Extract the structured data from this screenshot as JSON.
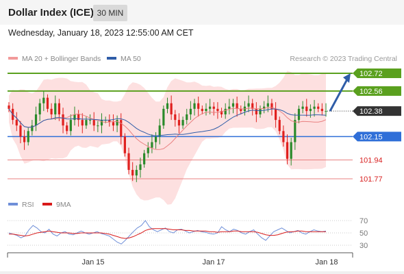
{
  "header": {
    "title": "Dollar Index (ICE)",
    "interval": "30 MIN",
    "datetime": "Wednesday, January 18, 2023 12:55:00 AM CET"
  },
  "legend": {
    "ma20": "MA 20 + Bollinger Bands",
    "ma50": "MA 50",
    "copyright": "Research © 2023 Trading Central"
  },
  "rsi_legend": {
    "rsi": "RSI",
    "ma": "9MA"
  },
  "colors": {
    "up": "#2a8a2a",
    "down": "#e0201e",
    "ma20": "#e98080",
    "ma50": "#2f5da8",
    "band": "#fcd6d6",
    "resistance": "#5aa01e",
    "support": "#2f6fd8",
    "support_weak": "#e88080",
    "rsi": "#6f8fd8",
    "rsi_ma": "#d81a1a",
    "arrow": "#2f5da8"
  },
  "levels": [
    {
      "value": 102.72,
      "label": "102.72",
      "kind": "resistance"
    },
    {
      "value": 102.56,
      "label": "102.56",
      "kind": "resistance"
    },
    {
      "value": 102.38,
      "label": "102.38",
      "kind": "last"
    },
    {
      "value": 102.15,
      "label": "102.15",
      "kind": "pivot"
    },
    {
      "value": 101.94,
      "label": "101.94",
      "kind": "support"
    },
    {
      "value": 101.77,
      "label": "101.77",
      "kind": "support"
    }
  ],
  "chart_data": [
    {
      "type": "candlestick",
      "title": "Dollar Index (ICE)",
      "interval": "30 MIN",
      "x_ticks": [
        "Jan 15",
        "Jan 17",
        "Jan 18"
      ],
      "ylim": [
        101.7,
        102.75
      ],
      "last_price": 102.38,
      "series": [
        {
          "name": "MA 20 + Bollinger Bands"
        },
        {
          "name": "MA 50"
        }
      ],
      "closes": [
        102.4,
        102.3,
        102.25,
        102.15,
        102.1,
        102.2,
        102.25,
        102.35,
        102.45,
        102.5,
        102.4,
        102.35,
        102.45,
        102.35,
        102.25,
        102.2,
        102.3,
        102.35,
        102.3,
        102.25,
        102.3,
        102.3,
        102.25,
        102.25,
        102.3,
        102.3,
        102.28,
        102.25,
        102.3,
        102.15,
        102.0,
        101.85,
        101.8,
        101.85,
        101.9,
        102.0,
        102.05,
        102.1,
        102.15,
        102.25,
        102.4,
        102.45,
        102.35,
        102.3,
        102.25,
        102.3,
        102.35,
        102.4,
        102.45,
        102.4,
        102.38,
        102.4,
        102.42,
        102.4,
        102.38,
        102.35,
        102.4,
        102.42,
        102.45,
        102.4,
        102.38,
        102.42,
        102.45,
        102.4,
        102.35,
        102.4,
        102.42,
        102.45,
        102.4,
        102.3,
        102.2,
        102.1,
        101.95,
        102.1,
        102.3,
        102.4,
        102.42,
        102.38,
        102.4,
        102.42,
        102.4,
        102.38,
        102.38
      ]
    },
    {
      "type": "line",
      "title": "RSI",
      "series": [
        {
          "name": "RSI"
        },
        {
          "name": "9MA"
        }
      ],
      "y_ticks": [
        30,
        50,
        70
      ],
      "ylim": [
        20,
        80
      ],
      "rsi": [
        50,
        48,
        46,
        42,
        45,
        55,
        62,
        58,
        52,
        50,
        56,
        48,
        45,
        50,
        52,
        48,
        47,
        50,
        53,
        50,
        48,
        50,
        52,
        49,
        47,
        45,
        40,
        35,
        32,
        38,
        45,
        52,
        58,
        62,
        70,
        60,
        55,
        52,
        55,
        58,
        52,
        50,
        55,
        56,
        53,
        50,
        52,
        54,
        52,
        51,
        49,
        48,
        50,
        60,
        55,
        52,
        56,
        54,
        50,
        48,
        52,
        55,
        48,
        42,
        38,
        45,
        52,
        55,
        58,
        54,
        50,
        52,
        54,
        50,
        48,
        52,
        55,
        53,
        52,
        53
      ],
      "rsi_ma": [
        48,
        48,
        47,
        46,
        45,
        46,
        48,
        50,
        51,
        52,
        53,
        52,
        51,
        50,
        50,
        50,
        49,
        49,
        50,
        50,
        50,
        50,
        50,
        50,
        49,
        48,
        46,
        44,
        42,
        41,
        42,
        44,
        47,
        50,
        54,
        56,
        57,
        57,
        57,
        57,
        56,
        55,
        55,
        55,
        54,
        54,
        53,
        53,
        53,
        53,
        52,
        52,
        51,
        52,
        52,
        52,
        53,
        53,
        52,
        52,
        52,
        52,
        51,
        49,
        47,
        46,
        46,
        47,
        49,
        51,
        52,
        52,
        53,
        53,
        52,
        52,
        52,
        52,
        52,
        52
      ]
    }
  ]
}
